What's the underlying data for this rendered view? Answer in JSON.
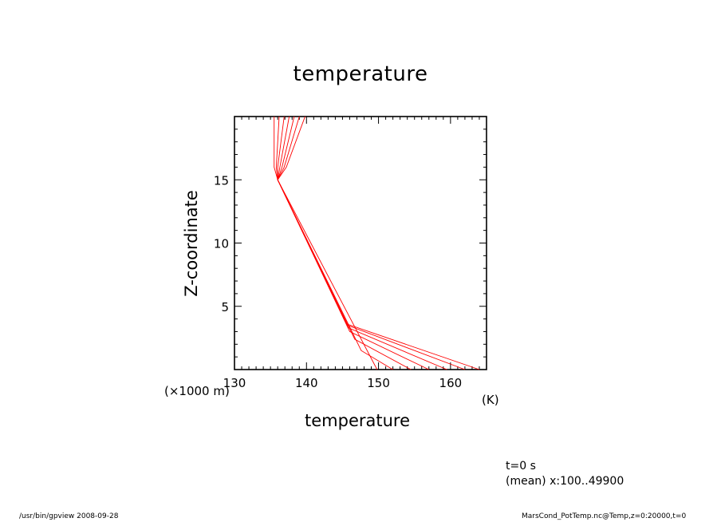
{
  "chart_data": {
    "type": "line",
    "title": "temperature",
    "xlabel": "temperature",
    "ylabel": "Z-coordinate",
    "x_unit": "(K)",
    "y_unit": "(×1000 m)",
    "xlim": [
      130,
      165
    ],
    "ylim": [
      0,
      20
    ],
    "x_ticks": [
      130,
      140,
      150,
      160
    ],
    "y_ticks": [
      5,
      10,
      15
    ],
    "grid": false,
    "color": "#ff0000",
    "series": [
      {
        "x": [
          149.8,
          136.0,
          135.5,
          135.5
        ],
        "y": [
          0,
          15.0,
          16.0,
          20
        ]
      },
      {
        "x": [
          152.0,
          147.6,
          136.0,
          135.8,
          136.2
        ],
        "y": [
          0,
          1.5,
          15.0,
          16.0,
          20
        ]
      },
      {
        "x": [
          154.5,
          146.7,
          136.0,
          136.0,
          136.9
        ],
        "y": [
          0,
          2.4,
          15.0,
          16.0,
          20
        ]
      },
      {
        "x": [
          157.0,
          146.0,
          136.0,
          136.3,
          137.6
        ],
        "y": [
          0,
          3.0,
          15.0,
          16.0,
          20
        ]
      },
      {
        "x": [
          159.5,
          145.8,
          136.0,
          136.6,
          138.3
        ],
        "y": [
          0,
          3.3,
          15.0,
          16.0,
          20
        ]
      },
      {
        "x": [
          162.0,
          145.7,
          136.0,
          136.9,
          139.0
        ],
        "y": [
          0,
          3.5,
          15.0,
          16.0,
          20
        ]
      },
      {
        "x": [
          164.0,
          145.6,
          136.0,
          137.2,
          139.8
        ],
        "y": [
          0,
          3.6,
          15.0,
          16.0,
          20
        ]
      }
    ]
  },
  "annotations": {
    "time": "t=0 s",
    "mean": "(mean) x:100..49900"
  },
  "footer": {
    "left": "/usr/bin/gpview   2008-09-28",
    "right": "MarsCond_PotTemp.nc@Temp,z=0:20000,t=0"
  }
}
